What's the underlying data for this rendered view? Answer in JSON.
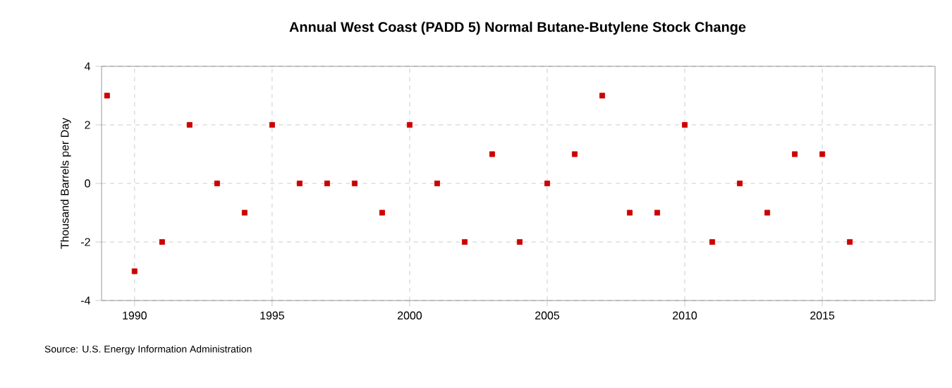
{
  "chart_data": {
    "type": "scatter",
    "title": "Annual West Coast (PADD 5) Normal Butane-Butylene Stock Change",
    "ylabel": "Thousand Barrels per Day",
    "x": [
      1989,
      1990,
      1991,
      1992,
      1993,
      1994,
      1995,
      1996,
      1997,
      1998,
      1999,
      2000,
      2001,
      2002,
      2003,
      2004,
      2005,
      2006,
      2007,
      2008,
      2009,
      2010,
      2011,
      2012,
      2013,
      2014,
      2015,
      2016
    ],
    "series": [
      {
        "color": "#cc0000",
        "values": [
          3,
          -3,
          -2,
          2,
          0,
          -1,
          2,
          0,
          0,
          0,
          -1,
          2,
          0,
          -2,
          1,
          -2,
          0,
          1,
          3,
          -1,
          -1,
          2,
          -2,
          0,
          -1,
          1,
          1,
          -2
        ]
      }
    ],
    "xlim": [
      1988.8,
      2019.1
    ],
    "xticks": [
      1990,
      1995,
      2000,
      2005,
      2010,
      2015
    ],
    "ylim": [
      -4,
      4
    ],
    "yticks": [
      -4,
      -2,
      0,
      2,
      4
    ],
    "grid": true,
    "marker": "square",
    "annotations": [
      "Source: U.S. Energy Information Administration"
    ]
  }
}
